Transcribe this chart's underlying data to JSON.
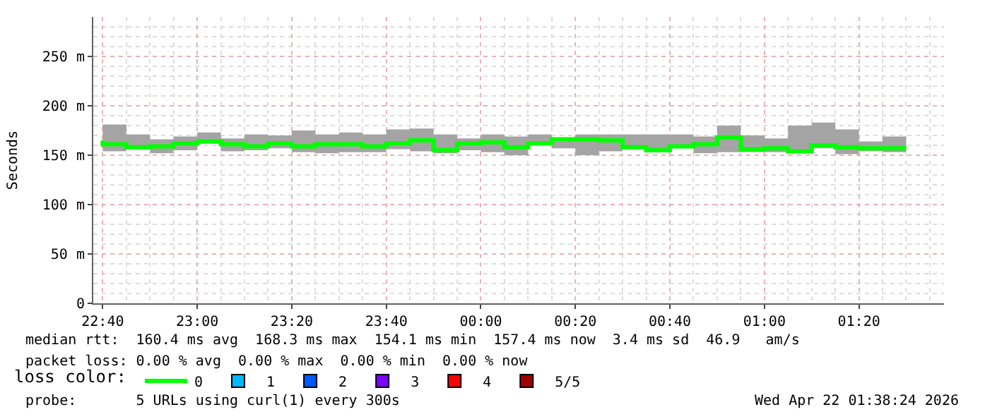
{
  "chart_data": {
    "type": "step",
    "ylabel": "Seconds",
    "legend_title": "loss color:",
    "x": [
      "--04-21T22:40",
      "--04-21T22:45",
      "--04-21T22:50",
      "--04-21T22:55",
      "--04-21T23:00",
      "--04-21T23:05",
      "--04-21T23:10",
      "--04-21T23:15",
      "--04-21T23:20",
      "--04-21T23:25",
      "--04-21T23:30",
      "--04-21T23:35",
      "--04-21T23:40",
      "--04-21T23:45",
      "--04-21T23:50",
      "--04-21T23:55",
      "--04-22T00:00",
      "--04-22T00:05",
      "--04-22T00:10",
      "--04-22T00:15",
      "--04-22T00:20",
      "--04-22T00:25",
      "--04-22T00:30",
      "--04-22T00:35",
      "--04-22T00:40",
      "--04-22T00:45",
      "--04-22T00:50",
      "--04-22T00:55",
      "--04-22T01:00",
      "--04-22T01:05",
      "--04-22T01:10",
      "--04-22T01:15",
      "--04-22T01:20",
      "--04-22T01:25",
      "--04-22T01:30"
    ],
    "series": [
      {
        "name": "0",
        "color": "#00ff00",
        "values": [
          165,
          161,
          158,
          159,
          162,
          164,
          161,
          159,
          162,
          159,
          161,
          161,
          159,
          162,
          165,
          155,
          162,
          163,
          158,
          162,
          166,
          166,
          165,
          158,
          155,
          159,
          161,
          168,
          156,
          157,
          154,
          160,
          158,
          157,
          157
        ],
        "lower": [
          153,
          154,
          156,
          152,
          155,
          162,
          154,
          155,
          157,
          153,
          152,
          153,
          153,
          156,
          154,
          152,
          155,
          153,
          150,
          160,
          157,
          150,
          154,
          156,
          153,
          157,
          152,
          153,
          153,
          153,
          153,
          157,
          151,
          154,
          153
        ],
        "upper": [
          175,
          181,
          171,
          166,
          169,
          173,
          167,
          171,
          170,
          175,
          171,
          173,
          171,
          176,
          177,
          171,
          167,
          171,
          169,
          171,
          168,
          171,
          171,
          171,
          171,
          171,
          169,
          180,
          170,
          167,
          180,
          183,
          176,
          164,
          169
        ]
      },
      {
        "name": "1",
        "color": "#00b8ff",
        "type": "scatter",
        "marker": "square",
        "values": [
          null,
          null,
          null,
          null,
          null,
          null,
          null,
          null,
          null,
          null,
          null,
          null,
          null,
          null,
          null,
          null,
          null,
          null,
          null,
          null,
          null,
          null,
          null,
          null,
          null,
          null,
          null,
          null,
          null,
          null,
          null,
          null,
          null,
          null,
          null
        ]
      },
      {
        "name": "2",
        "color": "#0059ff",
        "type": "scatter",
        "marker": "square",
        "values": [
          null,
          null,
          null,
          null,
          null,
          null,
          null,
          null,
          null,
          null,
          null,
          null,
          null,
          null,
          null,
          null,
          null,
          null,
          null,
          null,
          null,
          null,
          null,
          null,
          null,
          null,
          null,
          null,
          null,
          null,
          null,
          null,
          null,
          null,
          null
        ]
      },
      {
        "name": "3",
        "color": "#7e00ff",
        "type": "scatter",
        "marker": "square",
        "values": [
          null,
          null,
          null,
          null,
          null,
          null,
          null,
          null,
          null,
          null,
          null,
          null,
          null,
          null,
          null,
          null,
          null,
          null,
          null,
          null,
          null,
          null,
          null,
          null,
          null,
          null,
          null,
          null,
          null,
          null,
          null,
          null,
          null,
          null,
          null
        ]
      },
      {
        "name": "4",
        "color": "#ff0000",
        "type": "scatter",
        "marker": "square",
        "values": [
          null,
          null,
          null,
          null,
          null,
          null,
          null,
          null,
          null,
          null,
          null,
          null,
          null,
          null,
          null,
          null,
          null,
          null,
          null,
          null,
          null,
          null,
          null,
          null,
          null,
          null,
          null,
          null,
          null,
          null,
          null,
          null,
          null,
          null,
          null
        ]
      },
      {
        "name": "5/5",
        "color": "#a10000",
        "type": "scatter",
        "marker": "square",
        "values": [
          null,
          null,
          null,
          null,
          null,
          null,
          null,
          null,
          null,
          null,
          null,
          null,
          null,
          null,
          null,
          null,
          null,
          null,
          null,
          null,
          null,
          null,
          null,
          null,
          null,
          null,
          null,
          null,
          null,
          null,
          null,
          null,
          null,
          null,
          null
        ]
      }
    ],
    "xlim": [
      "--04-21T22:38",
      "--04-22T01:38"
    ],
    "xticks": [
      {
        "value": "--04-21T22:40",
        "label": "22:40"
      },
      {
        "value": "--04-21T23:00",
        "label": "23:00"
      },
      {
        "value": "--04-21T23:20",
        "label": "23:20"
      },
      {
        "value": "--04-21T23:40",
        "label": "23:40"
      },
      {
        "value": "--04-22T00:00",
        "label": "00:00"
      },
      {
        "value": "--04-22T00:20",
        "label": "00:20"
      },
      {
        "value": "--04-22T00:40",
        "label": "00:40"
      },
      {
        "value": "--04-22T01:00",
        "label": "01:00"
      },
      {
        "value": "--04-22T01:20",
        "label": "01:20"
      }
    ],
    "ylim": [
      0,
      290
    ],
    "yticks": [
      0,
      {
        "value": 50,
        "label": "50 m"
      },
      {
        "value": 100,
        "label": "100 m"
      },
      {
        "value": 150,
        "label": "150 m"
      },
      {
        "value": 200,
        "label": "200 m"
      },
      {
        "value": 250,
        "label": "250 m"
      }
    ],
    "grid": true,
    "legend": "bottom",
    "annotations": [
      "median rtt:  160.4 ms avg  168.3 ms max  154.1 ms min  157.4 ms now  3.4 ms sd  46.9   am/s",
      "packet loss: 0.00 % avg  0.00 % max  0.00 % min  0.00 % now",
      "probe:       5 URLs using curl(1) every 300s",
      "Wed Apr 22 01:38:24 2026"
    ]
  }
}
